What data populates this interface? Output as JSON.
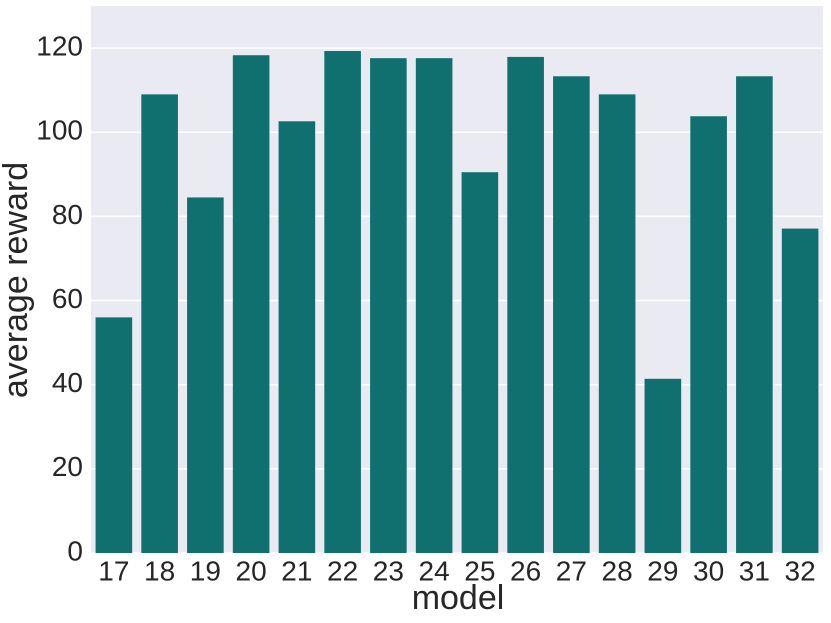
{
  "chart_data": {
    "type": "bar",
    "x_label": "model",
    "y_label": "average reward",
    "categories": [
      "17",
      "18",
      "19",
      "20",
      "21",
      "22",
      "23",
      "24",
      "25",
      "26",
      "27",
      "28",
      "29",
      "30",
      "31",
      "32"
    ],
    "values": [
      56,
      109,
      84.5,
      118.3,
      102.6,
      119.3,
      117.6,
      117.6,
      90.5,
      117.9,
      113.3,
      109,
      41.4,
      103.8,
      113.3,
      77.1
    ],
    "color": "#107070",
    "ylim": [
      0,
      130
    ],
    "yticks": [
      0,
      20,
      40,
      60,
      80,
      100,
      120
    ],
    "grid": true
  }
}
